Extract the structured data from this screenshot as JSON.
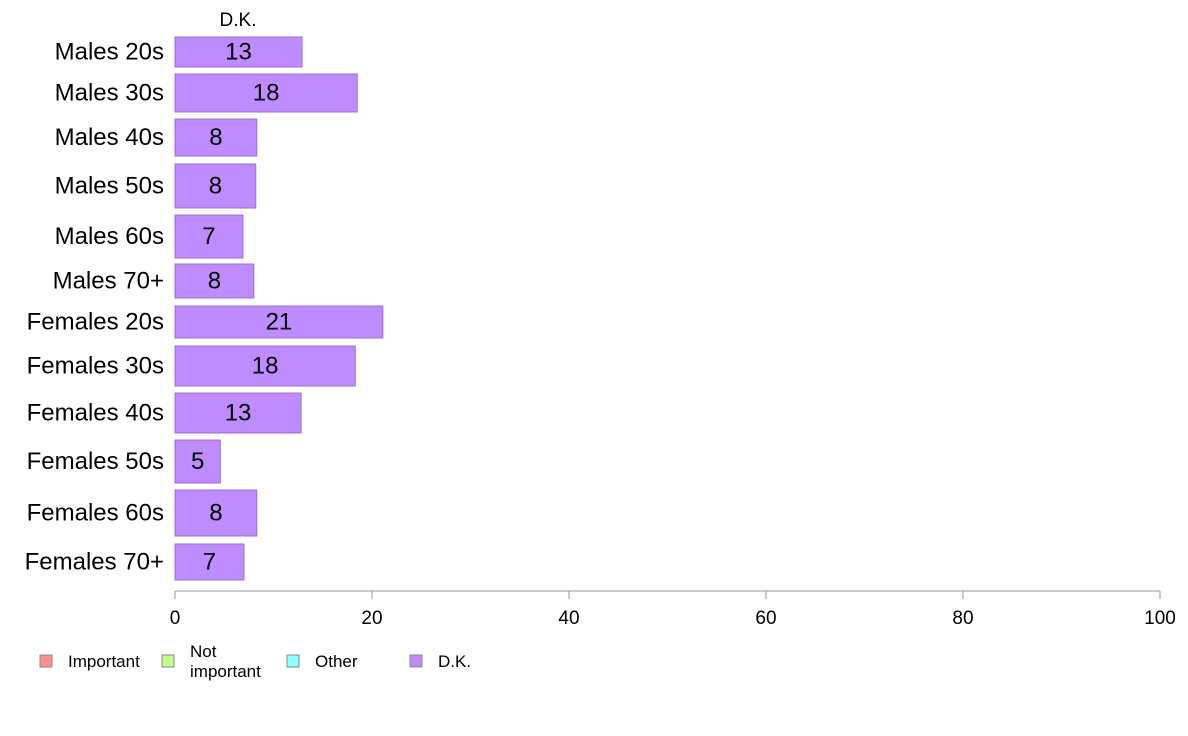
{
  "chart_data": {
    "type": "bar",
    "orientation": "horizontal",
    "stacked": true,
    "column_title": "D.K.",
    "categories": [
      "Males 20s",
      "Males 30s",
      "Males 40s",
      "Males 50s",
      "Males 60s",
      "Males 70+",
      "Females 20s",
      "Females 30s",
      "Females 40s",
      "Females 50s",
      "Females 60s",
      "Females 70+"
    ],
    "series": [
      {
        "name": "D.K.",
        "color": "#bf8cff",
        "values": [
          13,
          18,
          8,
          8,
          7,
          8,
          21,
          18,
          13,
          5,
          8,
          7
        ],
        "plotted_values": [
          12.9,
          18.5,
          8.3,
          8.2,
          6.9,
          8.0,
          21.1,
          18.3,
          12.8,
          4.6,
          8.3,
          7.0
        ]
      }
    ],
    "xlim": [
      0,
      100
    ],
    "xticks": [
      "0",
      "20",
      "40",
      "60",
      "80",
      "100"
    ],
    "grid": false,
    "legend": {
      "position": "bottom-left",
      "items": [
        {
          "label": "Important",
          "color": "#ff8f8f"
        },
        {
          "label": "Not important",
          "color": "#c4ff8c"
        },
        {
          "label": "Other",
          "color": "#8cffff"
        },
        {
          "label": "D.K.",
          "color": "#bf8cff"
        }
      ]
    }
  }
}
